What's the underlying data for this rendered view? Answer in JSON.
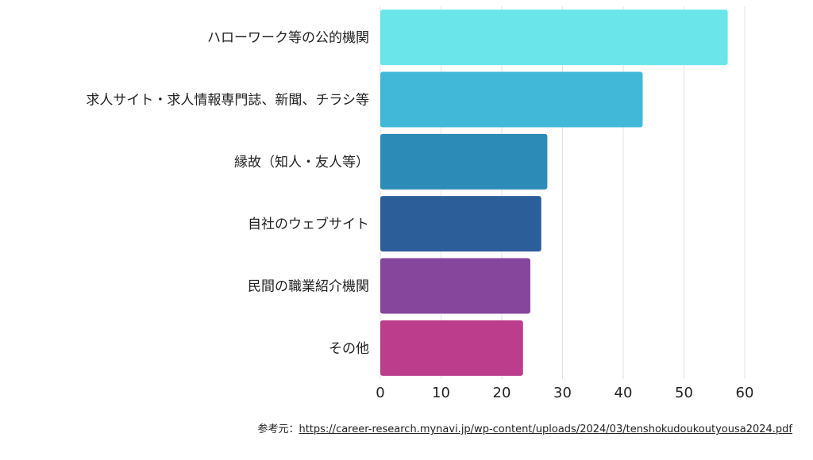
{
  "chart_data": {
    "type": "bar",
    "orientation": "horizontal",
    "categories": [
      "ハローワーク等の公的機関",
      "求人サイト・求人情報専門誌、新聞、チラシ等",
      "縁故（知人・友人等）",
      "自社のウェブサイト",
      "民間の職業紹介機関",
      "その他"
    ],
    "values": [
      57.2,
      43.2,
      27.5,
      26.5,
      24.7,
      23.5
    ],
    "colors": [
      "#6ae6ea",
      "#42b8d8",
      "#2d8bb8",
      "#2c5f99",
      "#86469c",
      "#bb3d8c"
    ],
    "xlim": [
      0,
      60
    ],
    "xticks": [
      0,
      10,
      20,
      30,
      40,
      50,
      60
    ],
    "grid": true,
    "title": "",
    "xlabel": "",
    "ylabel": ""
  },
  "source": {
    "prefix": "参考元：",
    "url": "https://career-research.mynavi.jp/wp-content/uploads/2024/03/tenshokudoukoutyousa2024.pdf"
  }
}
